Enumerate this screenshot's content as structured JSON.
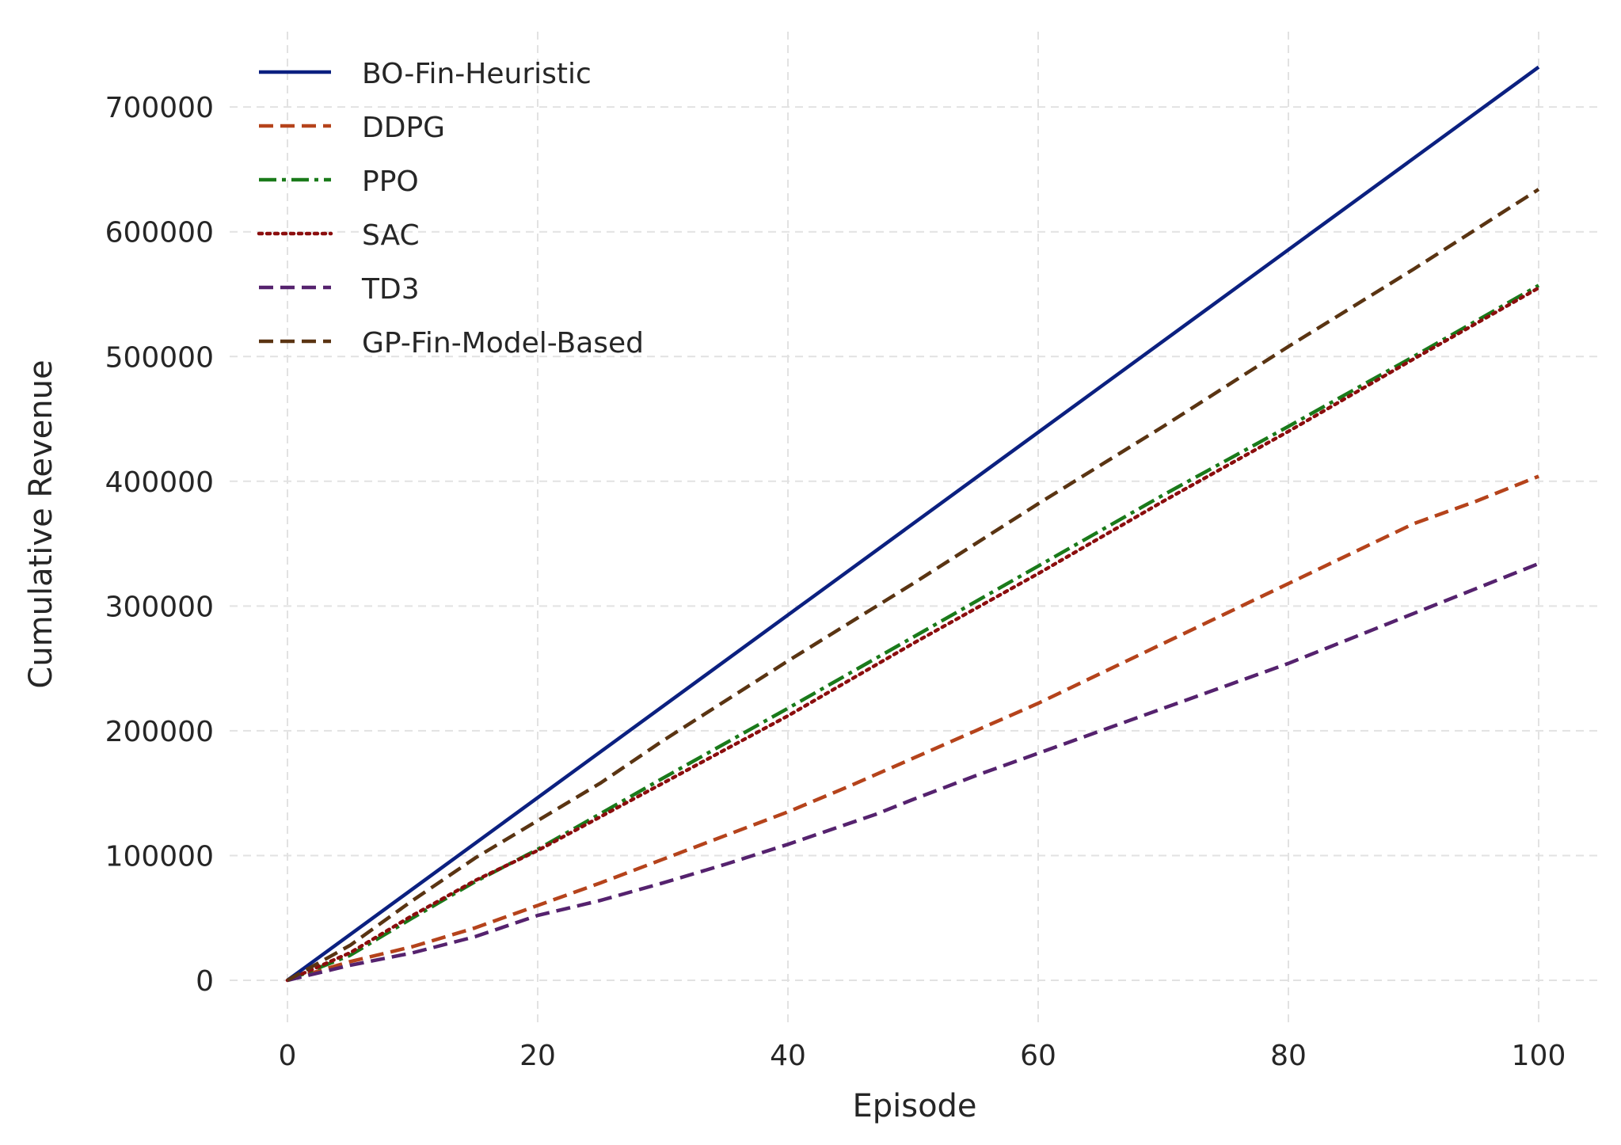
{
  "chart_data": {
    "type": "line",
    "title": "",
    "xlabel": "Episode",
    "ylabel": "Cumulative Revenue",
    "xlim": [
      -5,
      103
    ],
    "ylim": [
      -35000,
      750000
    ],
    "xticks": [
      0,
      20,
      40,
      60,
      80,
      100
    ],
    "yticks": [
      0,
      100000,
      200000,
      300000,
      400000,
      500000,
      600000,
      700000
    ],
    "grid": true,
    "legend_position": "top-left",
    "series": [
      {
        "name": "BO-Fin-Heuristic",
        "color": "#0b2080",
        "style": "solid",
        "x": [
          0,
          100
        ],
        "y": [
          0,
          732000
        ]
      },
      {
        "name": "DDPG",
        "color": "#b5431b",
        "style": "dashed",
        "x": [
          0,
          5,
          10,
          15,
          20,
          25,
          30,
          35,
          40,
          45,
          50,
          55,
          60,
          65,
          70,
          75,
          80,
          85,
          90,
          95,
          100
        ],
        "y": [
          0,
          15000,
          27000,
          42000,
          60000,
          78000,
          97000,
          116000,
          135000,
          156000,
          178000,
          200000,
          222000,
          246000,
          270000,
          294000,
          318000,
          342000,
          366000,
          384000,
          404000
        ]
      },
      {
        "name": "PPO",
        "color": "#1a7a1a",
        "style": "dashdot",
        "x": [
          0,
          5,
          10,
          15,
          20,
          30,
          40,
          50,
          60,
          70,
          80,
          90,
          100
        ],
        "y": [
          0,
          20000,
          50000,
          79000,
          105000,
          162000,
          218000,
          275000,
          332000,
          389000,
          444000,
          500000,
          557000
        ]
      },
      {
        "name": "SAC",
        "color": "#8b0d0d",
        "style": "dotted",
        "x": [
          0,
          5,
          10,
          15,
          20,
          30,
          40,
          50,
          60,
          70,
          80,
          90,
          100
        ],
        "y": [
          0,
          22000,
          52000,
          80000,
          104000,
          158000,
          212000,
          270000,
          326000,
          384000,
          440000,
          498000,
          555000
        ]
      },
      {
        "name": "TD3",
        "color": "#55226e",
        "style": "dashed",
        "x": [
          0,
          5,
          10,
          15,
          20,
          25,
          30,
          35,
          40,
          47,
          50,
          55,
          60,
          65,
          70,
          75,
          80,
          85,
          90,
          95,
          100
        ],
        "y": [
          0,
          12000,
          22000,
          35000,
          52000,
          64000,
          78000,
          93000,
          109000,
          133000,
          145000,
          164000,
          182000,
          200000,
          218000,
          236000,
          254000,
          274000,
          294000,
          314000,
          334000
        ]
      },
      {
        "name": "GP-Fin-Model-Based",
        "color": "#5a3412",
        "style": "dashed",
        "x": [
          0,
          5,
          10,
          15,
          20,
          25,
          30,
          40,
          50,
          60,
          70,
          80,
          90,
          100
        ],
        "y": [
          0,
          28000,
          64000,
          98000,
          128000,
          158000,
          192000,
          256000,
          318000,
          382000,
          444000,
          508000,
          570000,
          634000
        ]
      }
    ]
  }
}
